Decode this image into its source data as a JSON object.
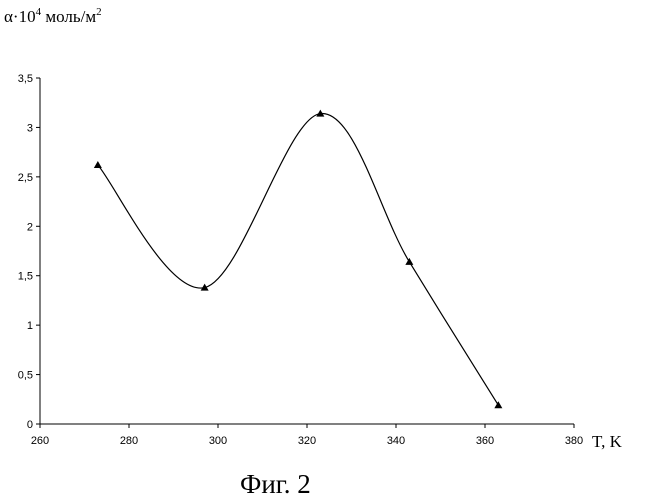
{
  "chart_data": {
    "type": "line",
    "ylabel": {
      "prefix": "α·10",
      "superscript": "4",
      "unit": " моль/м",
      "unit_superscript": "2"
    },
    "xlabel": "T, K",
    "caption": "Фиг. 2",
    "xlim": [
      260,
      380
    ],
    "ylim": [
      0,
      3.5
    ],
    "x_ticks": [
      260,
      280,
      300,
      320,
      340,
      360,
      380
    ],
    "x_tick_labels": [
      "260",
      "280",
      "300",
      "320",
      "340",
      "360",
      "380"
    ],
    "y_ticks": [
      0,
      0.5,
      1,
      1.5,
      2,
      2.5,
      3,
      3.5
    ],
    "y_tick_labels": [
      "0",
      "0,5",
      "1",
      "1,5",
      "2",
      "2,5",
      "3",
      "3,5"
    ],
    "grid": false,
    "smooth": true,
    "marker": "triangle",
    "series": [
      {
        "x": [
          273,
          297,
          323,
          343,
          363
        ],
        "y": [
          2.62,
          1.38,
          3.14,
          1.64,
          0.19
        ]
      }
    ],
    "colors": {
      "line": "#000000",
      "marker": "#000000",
      "axis": "#000000"
    }
  }
}
